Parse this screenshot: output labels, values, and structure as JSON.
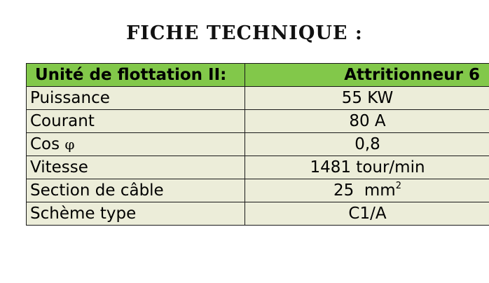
{
  "title": "FICHE TECHNIQUE :",
  "header": {
    "left": "Unité de flottation II:",
    "right": "Attritionneur 6"
  },
  "rows": [
    {
      "label": "Puissance",
      "value": "55 KW"
    },
    {
      "label": "Courant",
      "value": "80 A"
    },
    {
      "label_text": "Cos ",
      "label_symbol": "φ",
      "value": "0,8"
    },
    {
      "label": "Vitesse",
      "value": "1481 tour/min"
    },
    {
      "label": "Section de câble",
      "value": "25  mm",
      "value_sup": "2"
    },
    {
      "label": "Schème type",
      "value": "C1/A"
    }
  ]
}
